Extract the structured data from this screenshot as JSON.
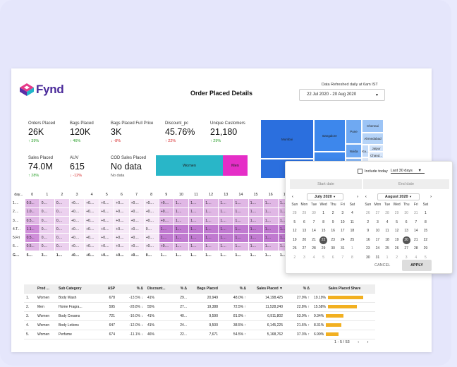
{
  "header": {
    "logo_text": "Fynd",
    "title": "Order Placed Details",
    "refresh": "Data Refreshed daily at 6am IST",
    "date_range": "22 Jul 2020 - 20 Aug 2020"
  },
  "metrics": [
    {
      "label": "Orders Placed",
      "value": "26K",
      "change": "↑ 39%",
      "dir": "up"
    },
    {
      "label": "Bags Placed",
      "value": "120K",
      "change": "↑ 46%",
      "dir": "up"
    },
    {
      "label": "Bags Placed Full Price",
      "value": "3K",
      "change": "↓ -8%",
      "dir": "down"
    },
    {
      "label": "Discount_pc",
      "value": "45.76%",
      "change": "↑ 22%",
      "dir": "down"
    },
    {
      "label": "Unique Customers",
      "value": "21,180",
      "change": "↑ 29%",
      "dir": "up"
    },
    {
      "label": "Sales Placed",
      "value": "74.0M",
      "change": "↑ 28%",
      "dir": "up"
    },
    {
      "label": "AUV",
      "value": "615",
      "change": "↓ -12%",
      "dir": "down"
    },
    {
      "label": "COD Sales Placed",
      "value": "No data",
      "change": "No data",
      "dir": "gray"
    }
  ],
  "gender": {
    "women": "Women",
    "men": "Men"
  },
  "treemap": {
    "mumbai": "Mumbai",
    "bangalore": "Bangalore",
    "pune": "Pune",
    "chennai": "Chennai",
    "ahmedabad": "Ahmedabad",
    "noida": "Noida",
    "kolkata": "Kolkata",
    "jaipur": "Jaipur",
    "chandi": "Chand...",
    "ka": "Ka...",
    "ko": "Ko..."
  },
  "heatmap": {
    "headers": [
      "day...",
      "0",
      "1",
      "2",
      "3",
      "4",
      "5",
      "6",
      "7",
      "8",
      "9",
      "10",
      "11",
      "12",
      "13",
      "14",
      "15",
      "16",
      "17"
    ],
    "rows": [
      [
        "1....",
        "0.5...",
        "0....",
        "0....",
        "+0....",
        "+0....",
        "+0....",
        "+0....",
        "+0....",
        "+0....",
        "+0....",
        "1....",
        "1....",
        "1....",
        "1....",
        "1....",
        "1....",
        "1....",
        "1...."
      ],
      [
        "2....",
        "1.0...",
        "0....",
        "0....",
        "+0....",
        "+0....",
        "+0....",
        "+0....",
        "+0....",
        "+0....",
        "+0....",
        "1....",
        "1....",
        "1....",
        "1....",
        "1....",
        "1....",
        "1....",
        "1...."
      ],
      [
        "3....",
        "0.5...",
        "0....",
        "0....",
        "+0....",
        "+0....",
        "+0....",
        "+0....",
        "+0....",
        "+0....",
        "+0....",
        "1....",
        "1....",
        "1....",
        "1....",
        "1....",
        "1....",
        "1....",
        "1...."
      ],
      [
        "4.T...",
        "1.1...",
        "0....",
        "0....",
        "+0....",
        "+0....",
        "+0....",
        "+0....",
        "+0....",
        "0....",
        "1....",
        "1....",
        "1....",
        "1....",
        "1....",
        "1....",
        "1....",
        "1....",
        "1...."
      ],
      [
        "5.Fri",
        "0.5...",
        "0....",
        "0....",
        "+0....",
        "+0....",
        "+0....",
        "+0....",
        "+0....",
        "+0....",
        "1....",
        "1....",
        "1....",
        "1....",
        "1....",
        "1....",
        "1....",
        "1....",
        "1...."
      ],
      [
        "6....",
        "0.5...",
        "0....",
        "0....",
        "+0....",
        "+0....",
        "+0....",
        "+0....",
        "+0....",
        "+0....",
        "+0....",
        "1....",
        "1....",
        "1....",
        "1....",
        "1....",
        "1....",
        "1....",
        "1...."
      ],
      [
        "G....",
        "5....",
        "3....",
        "1....",
        "+0....",
        "+0....",
        "+0....",
        "+0....",
        "+0....",
        "0....",
        "1....",
        "1....",
        "1....",
        "1....",
        "1....",
        "1....",
        "1....",
        "1....",
        "1...."
      ]
    ]
  },
  "table": {
    "headers": [
      "",
      "Prod ...",
      "Sub Category",
      "ASP",
      "% Δ",
      "Discount...",
      "% Δ",
      "Bags Placed",
      "% Δ",
      "Sales Placed ▼",
      "% Δ",
      "Sales Placed Share"
    ],
    "rows": [
      [
        "1.",
        "Women",
        "Body Wash",
        "678",
        "-13.5% ↓",
        "41%",
        "29...",
        "20,949",
        "48.0% ↑",
        "14,198,425",
        "27.9% ↑",
        "19.19%"
      ],
      [
        "2.",
        "Men",
        "Home Fragra...",
        "595",
        "-28.8% ↓",
        "55%",
        "27...",
        "19,388",
        "72.5% ↑",
        "11,528,240",
        "22.8% ↑",
        "15.58%"
      ],
      [
        "3.",
        "Women",
        "Body Creams",
        "721",
        "-16.0% ↓",
        "41%",
        "40...",
        "9,590",
        "81.9% ↑",
        "6,911,802",
        "53.0% ↑",
        "9.34%"
      ],
      [
        "4.",
        "Women",
        "Body Lotions",
        "647",
        "-12.0% ↓",
        "41%",
        "24...",
        "9,500",
        "38.5% ↑",
        "6,145,225",
        "21.6% ↑",
        "8.31%"
      ],
      [
        "5.",
        "Women",
        "Perfume",
        "674",
        "-11.1% ↓",
        "46%",
        "22...",
        "7,671",
        "54.5% ↑",
        "5,168,762",
        "37.3% ↑",
        "6.99%"
      ]
    ],
    "share_values": [
      19.19,
      15.58,
      9.34,
      8.31,
      6.99
    ],
    "pager": "1 - 5 / 53"
  },
  "calendar": {
    "include_today": "Include today",
    "period": "Last 30 days",
    "start": "Start date",
    "end": "End date",
    "months": [
      {
        "name": "July 2020",
        "dow": [
          "Sun",
          "Mon",
          "Tue",
          "Wed",
          "Thu",
          "Fri",
          "Sat"
        ],
        "weeks": [
          [
            "28",
            "29",
            "30",
            "1",
            "2",
            "3",
            "4"
          ],
          [
            "5",
            "6",
            "7",
            "8",
            "9",
            "10",
            "11"
          ],
          [
            "12",
            "13",
            "14",
            "15",
            "16",
            "17",
            "18"
          ],
          [
            "19",
            "20",
            "21",
            "22",
            "23",
            "24",
            "25"
          ],
          [
            "26",
            "27",
            "28",
            "29",
            "30",
            "31",
            "1"
          ],
          [
            "2",
            "3",
            "4",
            "5",
            "6",
            "7",
            "8"
          ]
        ],
        "selected": "22"
      },
      {
        "name": "August 2020",
        "dow": [
          "Sun",
          "Mon",
          "Tue",
          "Wed",
          "Thu",
          "Fri",
          "Sat"
        ],
        "weeks": [
          [
            "26",
            "27",
            "28",
            "29",
            "30",
            "31",
            "1"
          ],
          [
            "2",
            "3",
            "4",
            "5",
            "6",
            "7",
            "8"
          ],
          [
            "9",
            "10",
            "11",
            "12",
            "13",
            "14",
            "15"
          ],
          [
            "16",
            "17",
            "18",
            "19",
            "20",
            "21",
            "22"
          ],
          [
            "23",
            "24",
            "25",
            "26",
            "27",
            "28",
            "29"
          ],
          [
            "30",
            "31",
            "1",
            "2",
            "3",
            "4",
            "5"
          ]
        ],
        "selected": "20"
      }
    ],
    "cancel": "CANCEL",
    "apply": "APPLY"
  }
}
